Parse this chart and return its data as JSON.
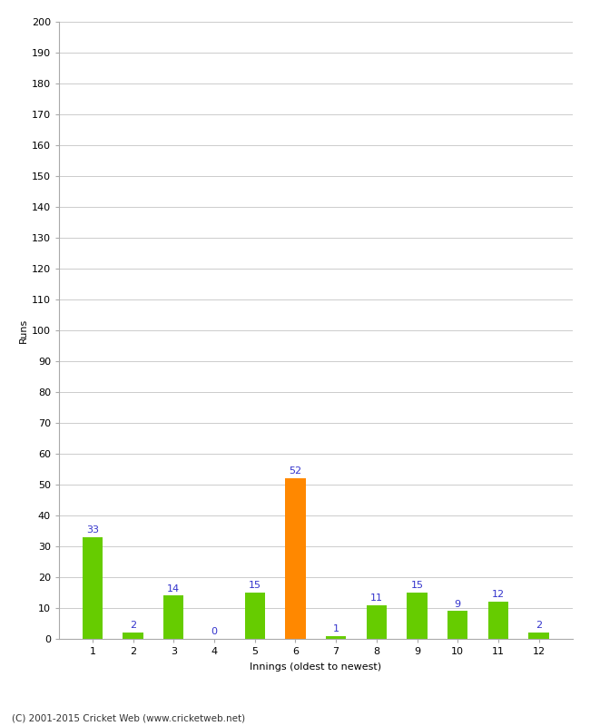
{
  "categories": [
    "1",
    "2",
    "3",
    "4",
    "5",
    "6",
    "7",
    "8",
    "9",
    "10",
    "11",
    "12"
  ],
  "values": [
    33,
    2,
    14,
    0,
    15,
    52,
    1,
    11,
    15,
    9,
    12,
    2
  ],
  "bar_colors": [
    "#66cc00",
    "#66cc00",
    "#66cc00",
    "#66cc00",
    "#66cc00",
    "#ff8800",
    "#66cc00",
    "#66cc00",
    "#66cc00",
    "#66cc00",
    "#66cc00",
    "#66cc00"
  ],
  "ylabel": "Runs",
  "xlabel": "Innings (oldest to newest)",
  "ylim": [
    0,
    200
  ],
  "ytick_step": 10,
  "label_color": "#3333cc",
  "background_color": "#ffffff",
  "grid_color": "#cccccc",
  "footer": "(C) 2001-2015 Cricket Web (www.cricketweb.net)"
}
